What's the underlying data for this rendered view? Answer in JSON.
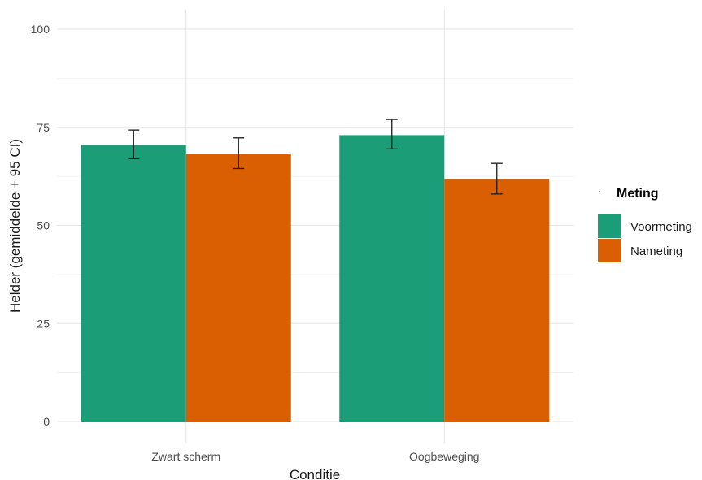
{
  "chart_data": {
    "type": "bar",
    "title": "",
    "xlabel": "Conditie",
    "ylabel": "Helder (gemiddelde + 95 CI)",
    "categories": [
      "Zwart scherm",
      "Oogbeweging"
    ],
    "ylim": [
      0,
      100
    ],
    "yticks": [
      "0",
      "25",
      "50",
      "75",
      "100"
    ],
    "grid": true,
    "legend": {
      "title": "Meting",
      "position": "right"
    },
    "series": [
      {
        "name": "Voormeting",
        "color": "#1b9e77",
        "values": [
          70.5,
          73.0
        ],
        "ci_low": [
          67.0,
          69.5
        ],
        "ci_high": [
          74.3,
          77.0
        ]
      },
      {
        "name": "Nameting",
        "color": "#d95f02",
        "values": [
          68.3,
          61.8
        ],
        "ci_low": [
          64.5,
          58.0
        ],
        "ci_high": [
          72.3,
          65.8
        ]
      }
    ]
  }
}
